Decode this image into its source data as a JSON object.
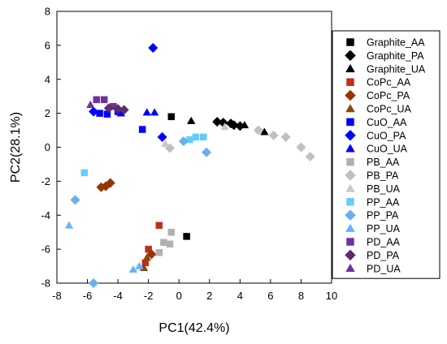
{
  "chart_data": {
    "type": "scatter",
    "title": "",
    "xlabel": "PC1(42.4%)",
    "ylabel": "PC2(28.1%)",
    "xlim": [
      -8,
      10
    ],
    "ylim": [
      -8,
      8
    ],
    "xticks": [
      -8,
      -6,
      -4,
      -2,
      0,
      2,
      4,
      6,
      8,
      10
    ],
    "yticks": [
      -8,
      -6,
      -4,
      -2,
      0,
      2,
      4,
      6,
      8
    ],
    "xtick_labels": [
      "-8",
      "-6",
      "-4",
      "-2",
      "0",
      "2",
      "4",
      "6",
      "8",
      "10"
    ],
    "ytick_labels": [
      "-8",
      "-6",
      "-4",
      "-2",
      "0",
      "2",
      "4",
      "6",
      "8"
    ],
    "grid": false,
    "legend_position": "right",
    "series": [
      {
        "name": "Graphite_AA",
        "marker": "square",
        "color": "#000000",
        "points": [
          [
            -0.5,
            1.8
          ],
          [
            0.5,
            -5.25
          ]
        ]
      },
      {
        "name": "Graphite_PA",
        "marker": "diamond",
        "color": "#000000",
        "points": [
          [
            2.5,
            1.5
          ],
          [
            2.9,
            1.45
          ],
          [
            3.4,
            1.4
          ],
          [
            3.6,
            1.3
          ],
          [
            4.0,
            1.25
          ]
        ]
      },
      {
        "name": "Graphite_UA",
        "marker": "triangle",
        "color": "#000000",
        "points": [
          [
            0.8,
            1.55
          ],
          [
            4.3,
            1.3
          ],
          [
            5.6,
            0.9
          ]
        ]
      },
      {
        "name": "CoPc_AA",
        "marker": "square",
        "color": "#c0301a",
        "points": [
          [
            -1.3,
            -4.6
          ],
          [
            -2.0,
            -6.0
          ],
          [
            -2.2,
            -6.8
          ]
        ]
      },
      {
        "name": "CoPc_PA",
        "marker": "diamond",
        "color": "#993300",
        "points": [
          [
            -4.5,
            -2.1
          ],
          [
            -4.8,
            -2.3
          ],
          [
            -5.1,
            -2.35
          ],
          [
            -1.8,
            -6.3
          ]
        ]
      },
      {
        "name": "CoPc_UA",
        "marker": "triangle",
        "color": "#8b4513",
        "points": [
          [
            -2.3,
            -7.1
          ],
          [
            -2.1,
            -6.5
          ]
        ]
      },
      {
        "name": "CuO_AA",
        "marker": "square",
        "color": "#0000ff",
        "points": [
          [
            -5.2,
            2.0
          ],
          [
            -4.7,
            1.95
          ],
          [
            -4.0,
            2.1
          ],
          [
            -2.4,
            1.05
          ]
        ]
      },
      {
        "name": "CuO_PA",
        "marker": "diamond",
        "color": "#0000ff",
        "points": [
          [
            -1.7,
            5.85
          ],
          [
            -5.6,
            2.1
          ],
          [
            -1.1,
            0.6
          ]
        ]
      },
      {
        "name": "CuO_UA",
        "marker": "triangle",
        "color": "#0000ff",
        "points": [
          [
            -2.1,
            2.05
          ],
          [
            -1.6,
            2.05
          ],
          [
            -3.8,
            2.0
          ]
        ]
      },
      {
        "name": "PB_AA",
        "marker": "square",
        "color": "#b0b0b0",
        "points": [
          [
            -1.0,
            -5.6
          ],
          [
            -0.5,
            -5.0
          ],
          [
            -0.6,
            -5.7
          ],
          [
            -1.3,
            -6.2
          ]
        ]
      },
      {
        "name": "PB_PA",
        "marker": "diamond",
        "color": "#c0c0c0",
        "points": [
          [
            5.2,
            1.0
          ],
          [
            6.2,
            0.7
          ],
          [
            7.0,
            0.6
          ],
          [
            8.0,
            0.0
          ],
          [
            8.6,
            -0.55
          ],
          [
            -0.6,
            -0.05
          ]
        ]
      },
      {
        "name": "PB_UA",
        "marker": "triangle",
        "color": "#c8c8c8",
        "points": [
          [
            3.0,
            1.2
          ],
          [
            -0.9,
            0.2
          ]
        ]
      },
      {
        "name": "PP_AA",
        "marker": "square",
        "color": "#66ccff",
        "points": [
          [
            0.7,
            0.45
          ],
          [
            1.1,
            0.6
          ],
          [
            1.6,
            0.6
          ],
          [
            -6.2,
            -1.5
          ]
        ]
      },
      {
        "name": "PP_PA",
        "marker": "diamond",
        "color": "#6aaef0",
        "points": [
          [
            1.8,
            -0.3
          ],
          [
            0.3,
            0.35
          ],
          [
            -6.8,
            -3.1
          ],
          [
            -5.6,
            -8.0
          ]
        ]
      },
      {
        "name": "PP_UA",
        "marker": "triangle",
        "color": "#66b3ff",
        "points": [
          [
            -7.2,
            -4.6
          ],
          [
            -3.0,
            -7.2
          ],
          [
            -2.6,
            -7.0
          ]
        ]
      },
      {
        "name": "PD_AA",
        "marker": "square",
        "color": "#7030a0",
        "points": [
          [
            -5.4,
            2.8
          ],
          [
            -4.9,
            2.8
          ],
          [
            -4.3,
            2.4
          ]
        ]
      },
      {
        "name": "PD_PA",
        "marker": "diamond",
        "color": "#5b2c6f",
        "points": [
          [
            -4.6,
            2.3
          ],
          [
            -3.6,
            2.2
          ],
          [
            -4.0,
            2.25
          ]
        ]
      },
      {
        "name": "PD_UA",
        "marker": "triangle",
        "color": "#7030a0",
        "points": [
          [
            -5.8,
            2.5
          ]
        ]
      }
    ]
  }
}
